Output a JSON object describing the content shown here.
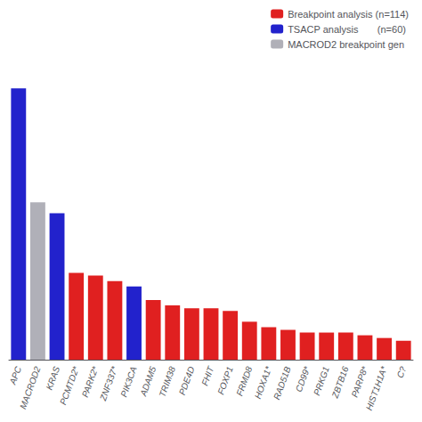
{
  "chart_data": {
    "type": "bar",
    "categories": [
      "APC",
      "MACROD2",
      "KRAS",
      "PCMTD2*",
      "PARK2*",
      "ZNF337*",
      "PIK3CA",
      "ADAM5",
      "TRIM38",
      "PDE4D",
      "FHIT",
      "FOXP1",
      "FRMD8",
      "HOXA1*",
      "RAD51B",
      "CD99*",
      "PRKG1",
      "ZBTB16",
      "PARP8*",
      "HIST1H1A*",
      "C?"
    ],
    "series": [
      {
        "name": "Breakpoint analysis (n=114)",
        "color": "#e02020",
        "values": [
          null,
          null,
          null,
          32,
          31,
          29,
          null,
          22,
          20,
          19,
          19,
          18,
          14,
          12,
          11,
          10,
          10,
          10,
          9,
          8,
          7
        ]
      },
      {
        "name": "TSACP analysis       (n=60)",
        "color": "#2222cc",
        "values": [
          100,
          null,
          54,
          null,
          null,
          null,
          27,
          null,
          null,
          null,
          null,
          null,
          null,
          null,
          null,
          null,
          null,
          null,
          null,
          null,
          null
        ]
      },
      {
        "name": "MACROD2 breakpoint gen",
        "color": "#b0b0b8",
        "values": [
          null,
          58,
          null,
          null,
          null,
          null,
          null,
          null,
          null,
          null,
          null,
          null,
          null,
          null,
          null,
          null,
          null,
          null,
          null,
          null,
          null
        ]
      }
    ],
    "ylim": [
      0,
      108
    ],
    "grid": false,
    "legend": "upper right",
    "tick_labels": "x"
  }
}
